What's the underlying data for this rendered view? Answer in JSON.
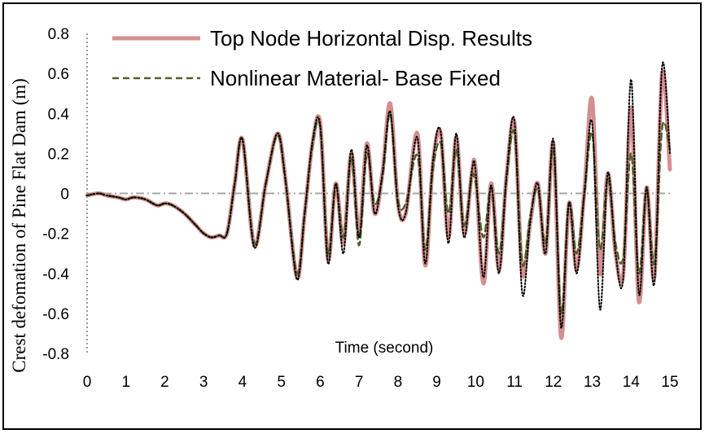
{
  "chart_data": {
    "type": "line",
    "title": "",
    "xlabel": "Time (second)",
    "ylabel": "Crest defomation of Pine Flat Dam (m)",
    "xlim": [
      0,
      15
    ],
    "ylim": [
      -0.8,
      0.8
    ],
    "x_ticks": [
      "0",
      "1",
      "2",
      "3",
      "4",
      "5",
      "6",
      "7",
      "8",
      "9",
      "10",
      "11",
      "12",
      "13",
      "14",
      "15"
    ],
    "y_ticks": [
      "0.8",
      "0.6",
      "0.4",
      "0.2",
      "0",
      "-0.2",
      "-0.4",
      "-0.6",
      "-0.8"
    ],
    "grid": false,
    "legend_position": "top-left",
    "zero_line": true,
    "series": [
      {
        "name": "Top Node Horizontal Disp. Results",
        "style": "solid",
        "color": "#d48f8f",
        "x": [
          0,
          0.3,
          0.5,
          0.8,
          1.0,
          1.2,
          1.5,
          1.8,
          2.0,
          2.2,
          2.5,
          2.8,
          3.0,
          3.2,
          3.4,
          3.6,
          3.8,
          4.0,
          4.3,
          4.6,
          4.9,
          5.1,
          5.4,
          5.6,
          5.8,
          6.0,
          6.2,
          6.4,
          6.6,
          6.8,
          7.0,
          7.2,
          7.4,
          7.6,
          7.8,
          8.0,
          8.2,
          8.5,
          8.7,
          8.9,
          9.1,
          9.3,
          9.5,
          9.7,
          9.9,
          10.0,
          10.2,
          10.4,
          10.6,
          10.8,
          11.0,
          11.2,
          11.4,
          11.6,
          11.8,
          12.0,
          12.2,
          12.4,
          12.6,
          12.8,
          13.0,
          13.2,
          13.4,
          13.6,
          13.8,
          14.0,
          14.2,
          14.4,
          14.6,
          14.8,
          15.0
        ],
        "y": [
          -0.01,
          0.0,
          -0.01,
          -0.02,
          -0.03,
          -0.02,
          -0.03,
          -0.06,
          -0.05,
          -0.06,
          -0.1,
          -0.16,
          -0.2,
          -0.22,
          -0.21,
          -0.2,
          0.05,
          0.27,
          -0.26,
          0.05,
          0.3,
          0.08,
          -0.42,
          -0.1,
          0.25,
          0.35,
          -0.33,
          0.05,
          -0.25,
          0.2,
          -0.2,
          0.25,
          -0.1,
          0.1,
          0.45,
          -0.05,
          -0.1,
          0.3,
          -0.36,
          0.15,
          0.3,
          -0.22,
          0.28,
          -0.2,
          0.1,
          0.12,
          -0.45,
          0.05,
          -0.38,
          0.1,
          0.35,
          -0.4,
          -0.15,
          0.05,
          -0.3,
          0.25,
          -0.72,
          -0.05,
          -0.38,
          0.02,
          0.47,
          -0.4,
          0.1,
          -0.3,
          -0.4,
          0.43,
          -0.54,
          0.03,
          -0.42,
          0.6,
          0.12
        ]
      },
      {
        "name": "Nonlinear Material- Base Fixed",
        "style": "dashed",
        "color": "#4f6228",
        "x": [
          0,
          0.3,
          0.5,
          0.8,
          1.0,
          1.2,
          1.5,
          1.8,
          2.0,
          2.2,
          2.5,
          2.8,
          3.0,
          3.2,
          3.4,
          3.6,
          3.8,
          4.0,
          4.3,
          4.6,
          4.9,
          5.1,
          5.4,
          5.6,
          5.8,
          6.0,
          6.2,
          6.4,
          6.6,
          6.8,
          7.0,
          7.2,
          7.4,
          7.6,
          7.8,
          8.0,
          8.2,
          8.5,
          8.7,
          8.9,
          9.1,
          9.3,
          9.5,
          9.7,
          9.9,
          10.0,
          10.2,
          10.4,
          10.6,
          10.8,
          11.0,
          11.2,
          11.4,
          11.6,
          11.8,
          12.0,
          12.2,
          12.4,
          12.6,
          12.8,
          13.0,
          13.2,
          13.4,
          13.6,
          13.8,
          14.0,
          14.2,
          14.4,
          14.6,
          14.8,
          15.0
        ],
        "y": [
          -0.01,
          0.0,
          -0.01,
          -0.02,
          -0.03,
          -0.02,
          -0.03,
          -0.06,
          -0.05,
          -0.06,
          -0.1,
          -0.16,
          -0.2,
          -0.22,
          -0.21,
          -0.2,
          0.05,
          0.27,
          -0.25,
          0.05,
          0.29,
          0.07,
          -0.4,
          -0.1,
          0.24,
          0.33,
          -0.3,
          0.04,
          -0.22,
          0.18,
          -0.26,
          0.2,
          -0.05,
          0.08,
          0.4,
          -0.03,
          -0.05,
          0.19,
          -0.28,
          0.12,
          0.25,
          -0.1,
          0.22,
          -0.16,
          0.08,
          0.05,
          -0.22,
          0.03,
          -0.3,
          0.08,
          0.3,
          -0.35,
          -0.12,
          0.02,
          -0.25,
          0.22,
          -0.6,
          -0.05,
          -0.3,
          0.0,
          0.3,
          -0.28,
          0.08,
          -0.25,
          -0.32,
          0.2,
          -0.4,
          0.02,
          -0.35,
          0.33,
          0.22
        ]
      },
      {
        "name": "",
        "style": "dotted",
        "color": "#000000",
        "x": [
          0,
          0.3,
          0.5,
          0.8,
          1.0,
          1.2,
          1.5,
          1.8,
          2.0,
          2.2,
          2.5,
          2.8,
          3.0,
          3.2,
          3.4,
          3.6,
          3.8,
          4.0,
          4.3,
          4.6,
          4.9,
          5.1,
          5.4,
          5.6,
          5.8,
          6.0,
          6.2,
          6.4,
          6.6,
          6.8,
          7.0,
          7.2,
          7.4,
          7.6,
          7.8,
          8.0,
          8.2,
          8.5,
          8.7,
          8.9,
          9.1,
          9.3,
          9.5,
          9.7,
          9.9,
          10.0,
          10.2,
          10.4,
          10.6,
          10.8,
          11.0,
          11.2,
          11.4,
          11.6,
          11.8,
          12.0,
          12.2,
          12.4,
          12.6,
          12.8,
          13.0,
          13.2,
          13.4,
          13.6,
          13.8,
          14.0,
          14.2,
          14.4,
          14.6,
          14.8,
          15.0
        ],
        "y": [
          -0.01,
          0.0,
          -0.01,
          -0.02,
          -0.03,
          -0.02,
          -0.03,
          -0.06,
          -0.05,
          -0.06,
          -0.1,
          -0.16,
          -0.2,
          -0.22,
          -0.21,
          -0.2,
          0.05,
          0.27,
          -0.27,
          0.05,
          0.3,
          0.08,
          -0.43,
          -0.1,
          0.26,
          0.34,
          -0.35,
          0.05,
          -0.3,
          0.22,
          -0.22,
          0.24,
          -0.1,
          0.1,
          0.41,
          -0.06,
          -0.1,
          0.28,
          -0.35,
          0.16,
          0.31,
          -0.25,
          0.3,
          -0.22,
          0.11,
          0.11,
          -0.42,
          0.04,
          -0.4,
          0.1,
          0.36,
          -0.5,
          -0.15,
          0.05,
          -0.3,
          0.27,
          -0.67,
          -0.05,
          -0.4,
          0.01,
          0.35,
          -0.58,
          0.1,
          -0.3,
          -0.42,
          0.57,
          -0.5,
          0.03,
          -0.45,
          0.64,
          0.2
        ]
      }
    ]
  }
}
